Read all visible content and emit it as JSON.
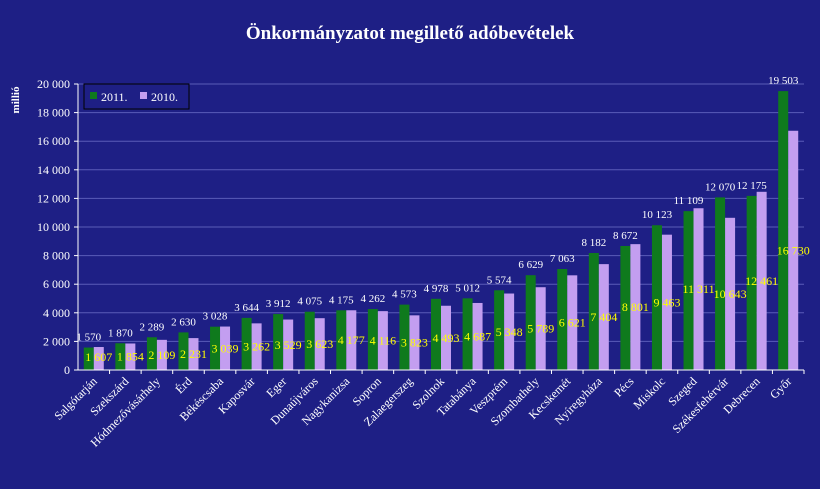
{
  "colors": {
    "background": "#1e1f85",
    "axis": "#ffffff",
    "grid": "#5a5cb8",
    "series_2011": "#0f7a1d",
    "series_2010": "#c39ef0",
    "label_2011": "#ffffff",
    "label_2010": "#ffff00"
  },
  "chart_data": {
    "type": "bar",
    "title": "Önkormányzatot megillető adóbevételek",
    "xlabel": "",
    "ylabel": "millió",
    "ylim": [
      0,
      20000
    ],
    "yticks": [
      0,
      2000,
      4000,
      6000,
      8000,
      10000,
      12000,
      14000,
      16000,
      18000,
      20000
    ],
    "ytick_labels": [
      "0",
      "2 000",
      "4 000",
      "6 000",
      "8 000",
      "10 000",
      "12 000",
      "14 000",
      "16 000",
      "18 000",
      "20 000"
    ],
    "grid": true,
    "legend_position": "top-left",
    "categories": [
      "Salgótarján",
      "Szekszárd",
      "Hódmezővásárhely",
      "Érd",
      "Békéscsaba",
      "Kaposvár",
      "Eger",
      "Dunaújváros",
      "Nagykanizsa",
      "Sopron",
      "Zalaegerszeg",
      "Szolnok",
      "Tatabánya",
      "Veszprém",
      "Szombathely",
      "Kecskemét",
      "Nyíregyháza",
      "Pécs",
      "Miskolc",
      "Szeged",
      "Székesfehérvár",
      "Debrecen",
      "Győr"
    ],
    "series": [
      {
        "name": "2011.",
        "values": [
          1570,
          1870,
          2289,
          2630,
          3028,
          3644,
          3912,
          4075,
          4175,
          4262,
          4573,
          4978,
          5012,
          5574,
          6629,
          7063,
          8182,
          8672,
          10123,
          11109,
          12070,
          12175,
          19503
        ],
        "labels": [
          "1 570",
          "1 870",
          "2 289",
          "2 630",
          "3 028",
          "3 644",
          "3 912",
          "4 075",
          "4 175",
          "4 262",
          "4 573",
          "4 978",
          "5 012",
          "5 574",
          "6 629",
          "7 063",
          "8 182",
          "8 672",
          "10 123",
          "11 109",
          "12 070",
          "12 175",
          "19 503"
        ]
      },
      {
        "name": "2010.",
        "values": [
          1607,
          1854,
          2109,
          2231,
          3039,
          3262,
          3529,
          3623,
          4177,
          4116,
          3823,
          4493,
          4687,
          5348,
          5789,
          6621,
          7404,
          8801,
          9463,
          11311,
          10643,
          12461,
          16730
        ],
        "labels": [
          "1 607",
          "1 854",
          "2 109",
          "2 231",
          "3 039",
          "3 262",
          "3 529",
          "3 623",
          "4 177",
          "4 116",
          "3 823",
          "4 493",
          "4 687",
          "5 348",
          "5 789",
          "6 621",
          "7 404",
          "8 801",
          "9 463",
          "11 311",
          "10 643",
          "12 461",
          "16 730"
        ]
      }
    ]
  }
}
